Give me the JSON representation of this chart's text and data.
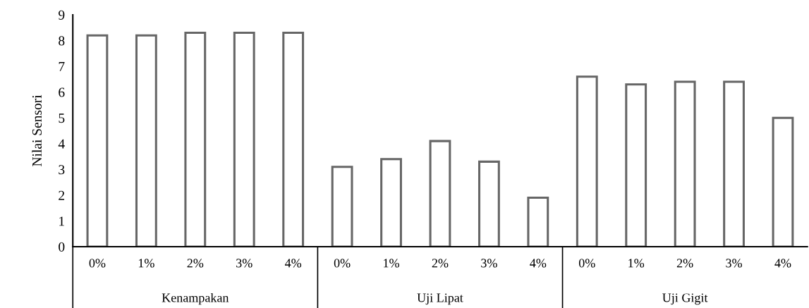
{
  "chart_data": {
    "type": "bar",
    "ylabel": "Nilai Sensori",
    "categories": [
      "0%",
      "1%",
      "2%",
      "3%",
      "4%",
      "0%",
      "1%",
      "2%",
      "3%",
      "4%",
      "0%",
      "1%",
      "2%",
      "3%",
      "4%"
    ],
    "annotations": [
      "Kenampakan",
      "Uji Lipat",
      "Uji Gigit"
    ],
    "values": [
      8.2,
      8.2,
      8.3,
      8.3,
      8.3,
      3.1,
      3.4,
      4.1,
      3.3,
      1.9,
      6.6,
      6.3,
      6.4,
      6.4,
      5.0
    ],
    "color": "#666666",
    "ylim": [
      0,
      9
    ],
    "yticks": [
      0,
      1,
      2,
      3,
      4,
      5,
      6,
      7,
      8,
      9
    ],
    "grid": false
  }
}
